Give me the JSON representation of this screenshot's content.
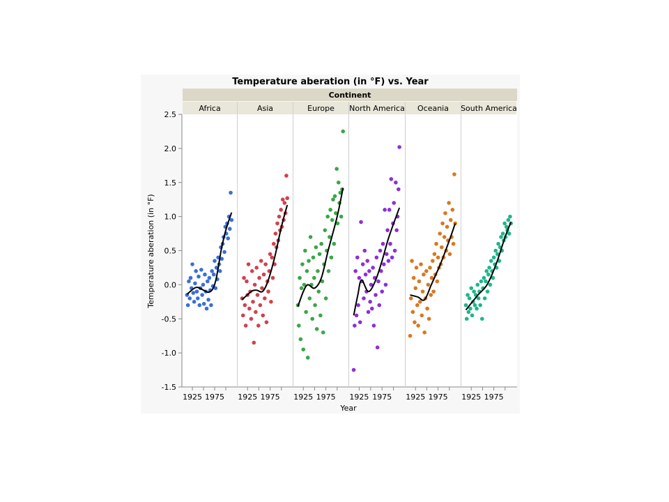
{
  "chart_data": {
    "type": "scatter",
    "title": "Temperature aberation (in °F) vs. Year",
    "group_header": "Continent",
    "xlabel": "Year",
    "ylabel": "Temperature aberation (in °F)",
    "ylim": [
      -1.5,
      2.5
    ],
    "yticks": [
      "2.5",
      "2.0",
      "1.5",
      "1.0",
      "0.5",
      "0.0",
      "-0.5",
      "-1.0",
      "-1.5"
    ],
    "xlim": [
      1903,
      2025
    ],
    "xticks": [
      "1925",
      "1975"
    ],
    "grid": false,
    "legend": "none",
    "panels": [
      {
        "name": "Africa",
        "color": "#3b6fd6",
        "values": [
          -0.15,
          -0.3,
          0.05,
          -0.2,
          0.1,
          -0.05,
          0.3,
          -0.12,
          -0.25,
          0.02,
          0.2,
          -0.1,
          -0.2,
          0.12,
          -0.3,
          -0.05,
          0.22,
          -0.15,
          0.0,
          -0.28,
          0.15,
          -0.1,
          -0.35,
          0.05,
          -0.22,
          0.1,
          -0.08,
          -0.3,
          0.2,
          -0.02,
          0.15,
          0.35,
          -0.05,
          0.25,
          0.08,
          0.4,
          0.3,
          0.2,
          0.55,
          0.38,
          0.6,
          0.7,
          0.48,
          0.85,
          0.75,
          0.9,
          0.68,
          1.0,
          0.82,
          1.35,
          0.95
        ],
        "smoother": [
          [
            1913,
            -0.14
          ],
          [
            1933,
            -0.04
          ],
          [
            1950,
            -0.08
          ],
          [
            1961,
            -0.11
          ],
          [
            1970,
            -0.07
          ],
          [
            1977,
            0.05
          ],
          [
            1983,
            0.25
          ],
          [
            1990,
            0.52
          ],
          [
            2000,
            0.8
          ],
          [
            2013,
            1.06
          ]
        ]
      },
      {
        "name": "Asia",
        "color": "#d1414f",
        "values": [
          -0.2,
          -0.45,
          0.1,
          -0.3,
          -0.6,
          0.05,
          -0.15,
          0.3,
          -0.35,
          -0.1,
          -0.5,
          0.2,
          -0.25,
          -0.85,
          0.0,
          -0.4,
          0.25,
          -0.15,
          -0.6,
          0.1,
          -0.3,
          0.35,
          -0.05,
          -0.45,
          0.15,
          -0.2,
          0.3,
          -0.55,
          0.05,
          -0.1,
          0.2,
          0.45,
          -0.25,
          0.4,
          0.1,
          0.6,
          0.3,
          0.75,
          0.55,
          0.9,
          0.65,
          1.0,
          0.8,
          1.1,
          0.85,
          1.25,
          0.95,
          1.2,
          1.05,
          1.6,
          1.27
        ],
        "smoother": [
          [
            1913,
            -0.22
          ],
          [
            1933,
            -0.1
          ],
          [
            1945,
            -0.08
          ],
          [
            1958,
            -0.1
          ],
          [
            1970,
            0.05
          ],
          [
            1985,
            0.4
          ],
          [
            2000,
            0.85
          ],
          [
            2013,
            1.17
          ]
        ]
      },
      {
        "name": "Europe",
        "color": "#3aa648",
        "values": [
          -0.3,
          -0.6,
          0.1,
          -0.8,
          -0.05,
          0.3,
          -0.95,
          0.0,
          0.5,
          -0.4,
          0.2,
          -1.07,
          0.35,
          -0.2,
          0.7,
          0.0,
          -0.5,
          0.4,
          0.1,
          -0.3,
          0.55,
          -0.65,
          0.2,
          -0.1,
          0.45,
          -0.45,
          0.6,
          0.05,
          -0.7,
          0.3,
          0.8,
          -0.2,
          0.5,
          1.0,
          0.2,
          0.7,
          1.1,
          0.4,
          0.95,
          1.25,
          0.6,
          1.3,
          1.05,
          1.7,
          0.9,
          1.5,
          1.2,
          1.35,
          1.0,
          1.4,
          2.25
        ],
        "smoother": [
          [
            1913,
            -0.32
          ],
          [
            1925,
            -0.1
          ],
          [
            1935,
            0.0
          ],
          [
            1950,
            -0.05
          ],
          [
            1965,
            0.1
          ],
          [
            1980,
            0.5
          ],
          [
            2000,
            1.0
          ],
          [
            2013,
            1.42
          ]
        ]
      },
      {
        "name": "North America",
        "color": "#8e2fd6",
        "values": [
          -1.25,
          -0.6,
          0.2,
          -0.45,
          0.4,
          -0.3,
          0.1,
          -0.55,
          0.92,
          0.05,
          0.3,
          -0.2,
          0.5,
          0.15,
          -0.1,
          0.35,
          -0.4,
          0.2,
          -0.25,
          0.0,
          -0.35,
          0.25,
          -0.6,
          0.1,
          -0.15,
          0.4,
          -0.92,
          0.05,
          -0.3,
          0.5,
          0.2,
          -0.1,
          0.6,
          0.3,
          1.1,
          0.0,
          0.45,
          0.8,
          0.35,
          1.1,
          0.6,
          1.55,
          0.4,
          0.9,
          1.2,
          0.5,
          1.5,
          0.8,
          1.0,
          1.4,
          2.02
        ],
        "smoother": [
          [
            1913,
            -0.45
          ],
          [
            1922,
            -0.15
          ],
          [
            1930,
            0.07
          ],
          [
            1945,
            -0.1
          ],
          [
            1960,
            0.05
          ],
          [
            1975,
            0.35
          ],
          [
            1990,
            0.7
          ],
          [
            2013,
            1.13
          ]
        ]
      },
      {
        "name": "Oceania",
        "color": "#d9781f",
        "values": [
          -0.75,
          -0.2,
          0.35,
          -0.4,
          0.1,
          -0.55,
          -0.05,
          0.25,
          -0.3,
          -0.6,
          0.05,
          -0.25,
          0.3,
          -0.45,
          -0.1,
          0.15,
          -0.7,
          -0.2,
          0.2,
          -0.35,
          0.0,
          -0.5,
          0.25,
          -0.15,
          0.1,
          0.35,
          -0.1,
          0.45,
          0.15,
          0.6,
          0.05,
          0.4,
          0.25,
          0.75,
          0.3,
          0.55,
          0.9,
          0.4,
          0.7,
          1.05,
          0.5,
          0.85,
          0.65,
          1.2,
          0.45,
          0.95,
          0.7,
          1.1,
          0.6,
          1.62,
          0.9
        ],
        "smoother": [
          [
            1913,
            -0.15
          ],
          [
            1930,
            -0.18
          ],
          [
            1945,
            -0.22
          ],
          [
            1960,
            0.0
          ],
          [
            1980,
            0.3
          ],
          [
            2000,
            0.65
          ],
          [
            2013,
            0.9
          ]
        ]
      },
      {
        "name": "South America",
        "color": "#1fb58c",
        "values": [
          -0.3,
          -0.5,
          -0.15,
          -0.4,
          -0.2,
          -0.35,
          -0.05,
          -0.45,
          -0.25,
          -0.1,
          -0.3,
          -0.15,
          -0.35,
          0.0,
          -0.2,
          -0.1,
          -0.3,
          0.05,
          -0.5,
          -0.05,
          0.1,
          -0.2,
          0.05,
          0.2,
          -0.1,
          0.15,
          0.25,
          0.0,
          0.35,
          0.2,
          0.1,
          0.4,
          0.3,
          0.5,
          0.25,
          0.45,
          0.6,
          0.35,
          0.55,
          0.7,
          0.5,
          0.75,
          0.65,
          0.9,
          0.7,
          0.85,
          0.8,
          0.95,
          0.75,
          1.0,
          0.9
        ],
        "smoother": [
          [
            1913,
            -0.37
          ],
          [
            1940,
            -0.15
          ],
          [
            1960,
            0.0
          ],
          [
            1980,
            0.3
          ],
          [
            2000,
            0.7
          ],
          [
            2013,
            0.92
          ]
        ]
      }
    ],
    "years": {
      "start": 1913,
      "step": 2
    }
  }
}
